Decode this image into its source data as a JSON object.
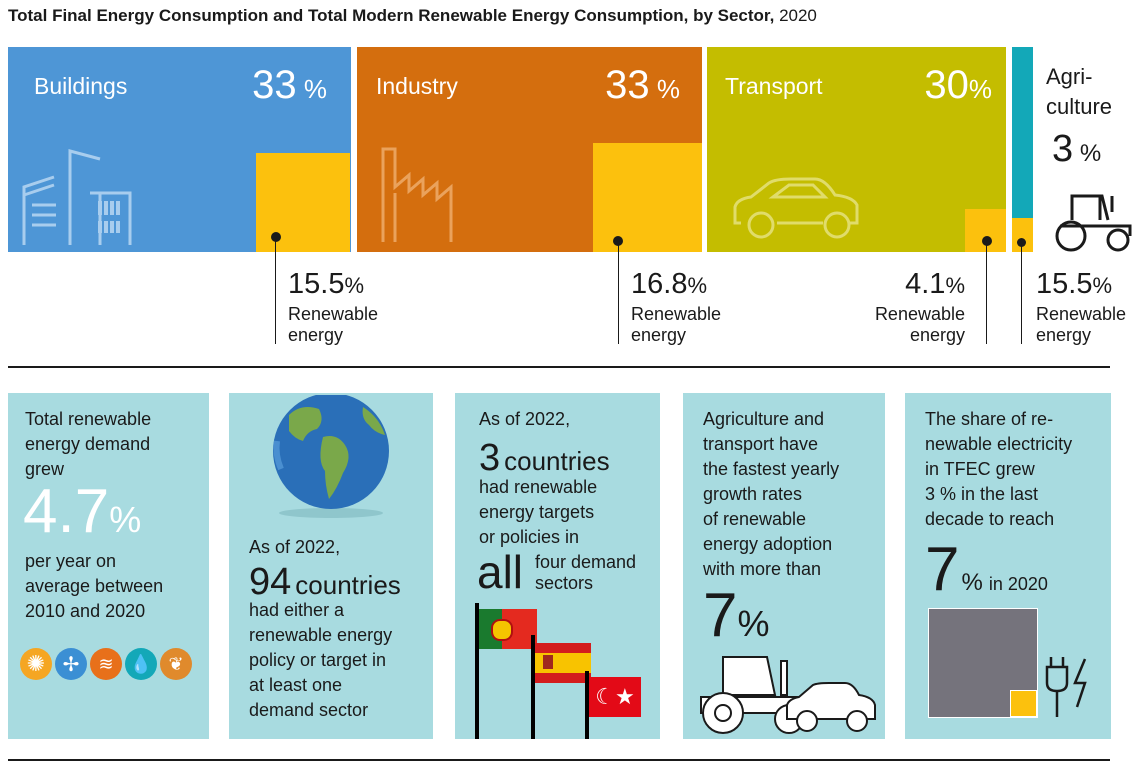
{
  "title": {
    "bold": "Total Final Energy Consumption and Total Modern Renewable Energy Consumption, by Sector,",
    "year": "2020"
  },
  "colors": {
    "buildings": "#4e96d6",
    "industry": "#d46e0e",
    "transport": "#c4bd00",
    "agriculture": "#13a8b8",
    "renewable": "#fcc10d",
    "panel": "#a8dbe0",
    "grey": "#75737c"
  },
  "chart_data": {
    "type": "treemap",
    "title": "Total Final Energy Consumption and Total Modern Renewable Energy Consumption, by Sector, 2020",
    "sectors": [
      {
        "name": "Buildings",
        "share_label": "33",
        "share": 33,
        "renewable_label": "15.5",
        "renewable_share": 15.5,
        "icon": "buildings-icon"
      },
      {
        "name": "Industry",
        "share_label": "33",
        "share": 33,
        "renewable_label": "16.8",
        "renewable_share": 16.8,
        "icon": "factory-icon"
      },
      {
        "name": "Transport",
        "share_label": "30",
        "share": 30,
        "renewable_label": "4.1",
        "renewable_share": 4.1,
        "icon": "car-icon"
      },
      {
        "name": "Agri-\nculture",
        "share_label": "3",
        "share": 3,
        "renewable_label": "15.5",
        "renewable_share": 15.5,
        "icon": "tractor-icon"
      }
    ],
    "unit": "%",
    "renewable_label": "Renewable\nenergy"
  },
  "facts": [
    {
      "pre": "Total renewable\nenergy demand\ngrew",
      "value": "4.7",
      "unit": "%",
      "post": "per year on\naverage between\n2010 and 2020",
      "icons": [
        "solar-icon",
        "wind-icon",
        "geothermal-icon",
        "hydro-icon",
        "bioenergy-icon"
      ]
    },
    {
      "pre": "As of 2022,",
      "value": "94",
      "value_suffix": "countries",
      "post": "had either a\nrenewable energy\npolicy or target in\nat least one\ndemand sector",
      "icons": [
        "globe-icon"
      ]
    },
    {
      "pre": "As of 2022,",
      "value": "3",
      "value_suffix": "countries",
      "mid": "had renewable\nenergy targets\nor policies in",
      "big_word": "all",
      "small": "four demand\nsectors",
      "icons": [
        "portugal-flag-icon",
        "spain-flag-icon",
        "turkey-flag-icon"
      ]
    },
    {
      "pre": "Agriculture and\ntransport have\nthe fastest yearly\ngrowth rates\nof renewable\nenergy adoption\nwith more than",
      "value": "7",
      "unit": "%",
      "icons": [
        "tractor-icon",
        "car-icon"
      ]
    },
    {
      "pre": "The share of re-\nnewable electricity\nin TFEC grew\n3 % in the last\ndecade to reach",
      "value": "7",
      "unit": "%",
      "post": "in 2020",
      "share_old_percent": 3,
      "share_new_percent": 7,
      "icons": [
        "plug-icon"
      ]
    }
  ]
}
